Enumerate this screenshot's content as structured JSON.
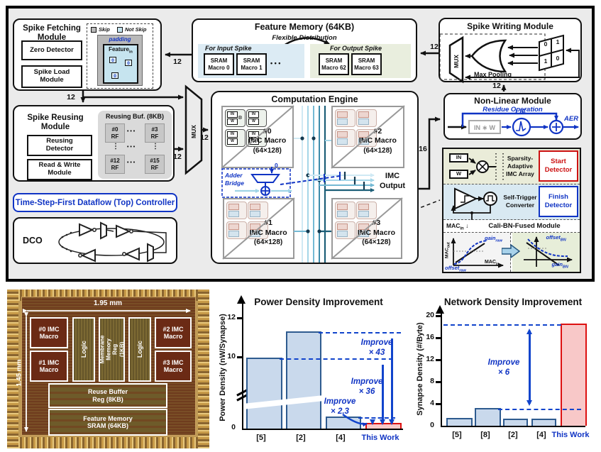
{
  "diagram": {
    "bus12": "12",
    "bus16": "16",
    "spike_fetching": {
      "title": "Spike Fetching\nModule",
      "zero_detector": "Zero Detector",
      "spike_load": "Spike Load\nModule",
      "skip": "Skip",
      "not_skip": "Not Skip",
      "padding": "padding",
      "feature": "Feature",
      "feature_sub": "in",
      "zero": "0"
    },
    "feature_memory": {
      "title": "Feature Memory (64KB)",
      "subtitle": "Flexible Distribution",
      "input_region": "For Input Spike",
      "output_region": "For Output Spike",
      "sram0": "SRAM\nMacro 0",
      "sram1": "SRAM\nMacro 1",
      "sram62": "SRAM\nMacro 62",
      "sram63": "SRAM\nMacro 63",
      "dots": "• • •"
    },
    "spike_writing": {
      "title": "Spike Writing Module",
      "mux": "MUX",
      "max_pooling": "Max Pooling",
      "grid": [
        "0",
        "1",
        "1",
        "0"
      ]
    },
    "spike_reusing": {
      "title": "Spike Reusing\nModule",
      "reusing_detector": "Reusing\nDetector",
      "read_write": "Read & Write\nModule",
      "buf_title": "Reusing Buf. (8KB)",
      "rf0": "#0\nRF",
      "rf3": "#3\nRF",
      "rf12": "#12\nRF",
      "rf15": "#15\nRF",
      "dots_h": "• • •",
      "dots_v": "⋮"
    },
    "mux_label": "MUX",
    "computation_engine": {
      "title": "Computation Engine",
      "macros": [
        {
          "id": "#0",
          "name": "IMC Macro",
          "size": "(64×128)"
        },
        {
          "id": "#2",
          "name": "IMC Macro",
          "size": "(64×128)"
        },
        {
          "id": "#1",
          "name": "IMC Macro",
          "size": "(64×128)"
        },
        {
          "id": "#3",
          "name": "IMC Macro",
          "size": "(64×128)"
        }
      ],
      "cell_in": "IN",
      "cell_w": "W",
      "mult_icon": "⊗",
      "adder_bridge": "Adder\nBridge",
      "adder_zero": "0",
      "imc_output": "IMC\nOutput"
    },
    "controller": "Time-Step-First Dataflow (Top) Controller",
    "dco": "DCO",
    "nonlinear": {
      "title": "Non-Linear Module",
      "subtitle": "Residue Operation",
      "inw": "IN ∗ W",
      "lif": "LIF",
      "aer": "AER"
    },
    "detail": {
      "in": "IN",
      "w": "W",
      "sparsity": "Sparsity-\nAdaptive\nIMC Array",
      "start": "Start\nDetector",
      "self_trigger": "Self-Trigger\nConverter",
      "finish": "Finish\nDetector",
      "mac": "MAC",
      "sub_in": "in",
      "sub_out": "out",
      "down_arrow": "↓",
      "cali_title": "Cali-BN-Fused Module",
      "gain": "gain",
      "offset": "offset",
      "sub_raw": "raw",
      "sub_bn": "BN"
    },
    "colors": {
      "accent_blue": "#1034c4",
      "start_red": "#cc1111",
      "input_region_bg": "#dcebf4",
      "output_region_bg": "#e9eede",
      "sparsity_bg": "#eaecd9",
      "trigger_bg": "#d9e9f2",
      "teal_dark": "#1d5f78",
      "teal_light": "#cfe9f4"
    }
  },
  "die": {
    "width_label": "1.95 mm",
    "height_label": "1.45 mm",
    "blocks": {
      "imc0": "#0 IMC\nMacro",
      "imc1": "#1 IMC\nMacro",
      "imc2": "#2 IMC\nMacro",
      "imc3": "#3 IMC\nMacro",
      "logic_left": "Logic",
      "logic_right": "Logic",
      "membrane": "Membrane\nMemory Reg\n(1KB)",
      "reuse": "Reuse Buffer\nReg (8KB)",
      "feature": "Feature Memory\nSRAM (64KB)"
    }
  },
  "chart_data": [
    {
      "type": "bar",
      "title": "Power Density Improvement",
      "ylabel": "Power Density (nW/Synapse)",
      "categories": [
        "[5]",
        "[2]",
        "[4]",
        "This Work"
      ],
      "values": [
        9.4,
        11.2,
        0.6,
        0.26
      ],
      "yticks": [
        "12",
        "10",
        "0"
      ],
      "ylim": [
        0,
        12.8
      ],
      "axis_break": true,
      "grid": false,
      "annotations": [
        {
          "text": "Improve\n× 43",
          "ref": "[2]"
        },
        {
          "text": "Improve\n× 36",
          "ref": "[5]"
        },
        {
          "text": "Improve\n× 2.3",
          "ref": "[4]"
        }
      ],
      "highlight_category": "This Work",
      "colors": {
        "bar": "#c9d9ec",
        "bar_border": "#2e5b8f",
        "highlight": "#f8c8c8",
        "highlight_border": "#dd1111",
        "annotation": "#1034c4"
      }
    },
    {
      "type": "bar",
      "title": "Network Density Improvement",
      "ylabel": "Synapse Density (#/Byte)",
      "categories": [
        "[5]",
        "[8]",
        "[2]",
        "[4]",
        "This Work"
      ],
      "values": [
        1.2,
        3,
        1,
        1,
        18.2
      ],
      "yticks": [
        "20",
        "16",
        "12",
        "8",
        "4",
        "0"
      ],
      "ylim": [
        0,
        20
      ],
      "grid": false,
      "annotations": [
        {
          "text": "Improve\n× 6",
          "ref": "[8]"
        }
      ],
      "highlight_category": "This Work",
      "colors": {
        "bar": "#c9d9ec",
        "bar_border": "#2e5b8f",
        "highlight": "#f8c8c8",
        "highlight_border": "#dd1111",
        "annotation": "#1034c4"
      }
    }
  ]
}
